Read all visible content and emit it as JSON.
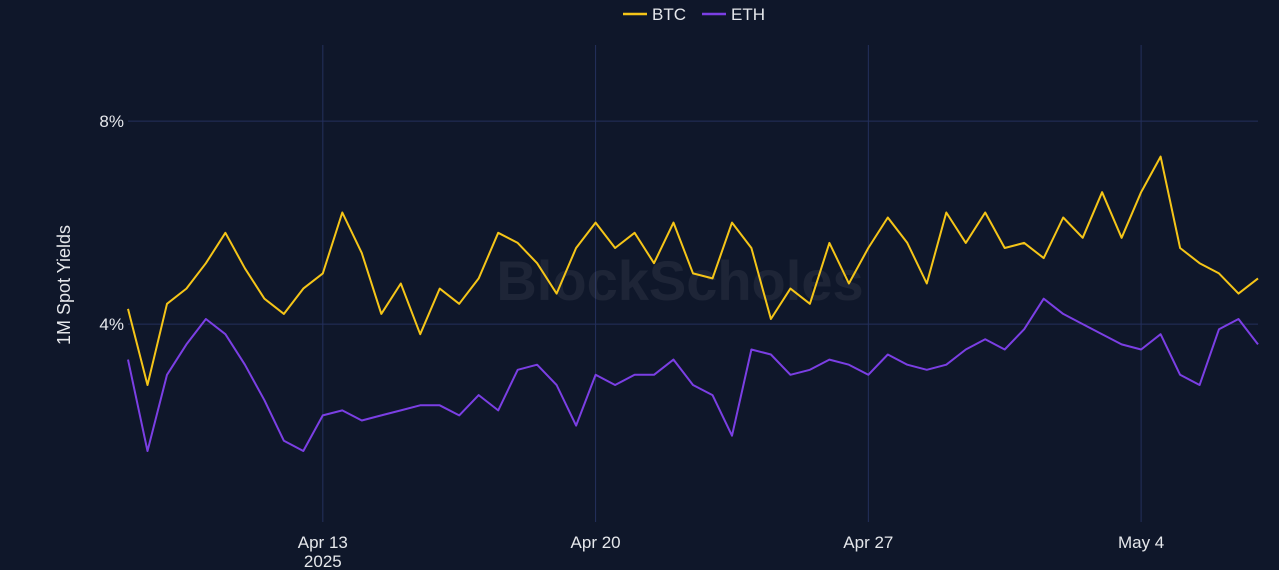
{
  "colors": {
    "background": "#0f172a",
    "grid": "#24305c",
    "btc": "#f5c518",
    "eth": "#7b3fe4"
  },
  "watermark": "BlockScholes",
  "chart_data": {
    "type": "line",
    "ylabel": "1M Spot Yields",
    "ylim": [
      0.001,
      0.095
    ],
    "y_ticks": [
      {
        "value": 0.04,
        "label": "4%"
      },
      {
        "value": 0.08,
        "label": "8%"
      }
    ],
    "xlim": [
      "2025-04-08",
      "2025-05-07"
    ],
    "x_ticks": [
      {
        "value": "2025-04-13",
        "label": "Apr 13",
        "sublabel": "2025"
      },
      {
        "value": "2025-04-20",
        "label": "Apr 20",
        "sublabel": ""
      },
      {
        "value": "2025-04-27",
        "label": "Apr 27",
        "sublabel": ""
      },
      {
        "value": "2025-05-04",
        "label": "May 4",
        "sublabel": ""
      }
    ],
    "grid": true,
    "legend_position": "top-center",
    "x": [
      "2025-04-08T00:00",
      "2025-04-08T12:00",
      "2025-04-09T00:00",
      "2025-04-09T12:00",
      "2025-04-10T00:00",
      "2025-04-10T12:00",
      "2025-04-11T00:00",
      "2025-04-11T12:00",
      "2025-04-12T00:00",
      "2025-04-12T12:00",
      "2025-04-13T00:00",
      "2025-04-13T12:00",
      "2025-04-14T00:00",
      "2025-04-14T12:00",
      "2025-04-15T00:00",
      "2025-04-15T12:00",
      "2025-04-16T00:00",
      "2025-04-16T12:00",
      "2025-04-17T00:00",
      "2025-04-17T12:00",
      "2025-04-18T00:00",
      "2025-04-18T12:00",
      "2025-04-19T00:00",
      "2025-04-19T12:00",
      "2025-04-20T00:00",
      "2025-04-20T12:00",
      "2025-04-21T00:00",
      "2025-04-21T12:00",
      "2025-04-22T00:00",
      "2025-04-22T12:00",
      "2025-04-23T00:00",
      "2025-04-23T12:00",
      "2025-04-24T00:00",
      "2025-04-24T12:00",
      "2025-04-25T00:00",
      "2025-04-25T12:00",
      "2025-04-26T00:00",
      "2025-04-26T12:00",
      "2025-04-27T00:00",
      "2025-04-27T12:00",
      "2025-04-28T00:00",
      "2025-04-28T12:00",
      "2025-04-29T00:00",
      "2025-04-29T12:00",
      "2025-04-30T00:00",
      "2025-04-30T12:00",
      "2025-05-01T00:00",
      "2025-05-01T12:00",
      "2025-05-02T00:00",
      "2025-05-02T12:00",
      "2025-05-03T00:00",
      "2025-05-03T12:00",
      "2025-05-04T00:00",
      "2025-05-04T12:00",
      "2025-05-05T00:00",
      "2025-05-05T12:00",
      "2025-05-06T00:00",
      "2025-05-06T12:00",
      "2025-05-07T00:00"
    ],
    "series": [
      {
        "name": "BTC",
        "values": [
          0.043,
          0.028,
          0.044,
          0.047,
          0.052,
          0.058,
          0.051,
          0.045,
          0.042,
          0.047,
          0.05,
          0.062,
          0.054,
          0.042,
          0.048,
          0.038,
          0.047,
          0.044,
          0.049,
          0.058,
          0.056,
          0.052,
          0.046,
          0.055,
          0.06,
          0.055,
          0.058,
          0.052,
          0.06,
          0.05,
          0.049,
          0.06,
          0.055,
          0.041,
          0.047,
          0.044,
          0.056,
          0.048,
          0.055,
          0.061,
          0.056,
          0.048,
          0.062,
          0.056,
          0.062,
          0.055,
          0.056,
          0.053,
          0.061,
          0.057,
          0.066,
          0.057,
          0.066,
          0.073,
          0.055,
          0.052,
          0.05,
          0.046,
          0.049
        ]
      },
      {
        "name": "ETH",
        "values": [
          0.033,
          0.015,
          0.03,
          0.036,
          0.041,
          0.038,
          0.032,
          0.025,
          0.017,
          0.015,
          0.022,
          0.023,
          0.021,
          0.022,
          0.023,
          0.024,
          0.024,
          0.022,
          0.026,
          0.023,
          0.031,
          0.032,
          0.028,
          0.02,
          0.03,
          0.028,
          0.03,
          0.03,
          0.033,
          0.028,
          0.026,
          0.018,
          0.035,
          0.034,
          0.03,
          0.031,
          0.033,
          0.032,
          0.03,
          0.034,
          0.032,
          0.031,
          0.032,
          0.035,
          0.037,
          0.035,
          0.039,
          0.045,
          0.042,
          0.04,
          0.038,
          0.036,
          0.035,
          0.038,
          0.03,
          0.028,
          0.039,
          0.041,
          0.036
        ]
      }
    ]
  }
}
